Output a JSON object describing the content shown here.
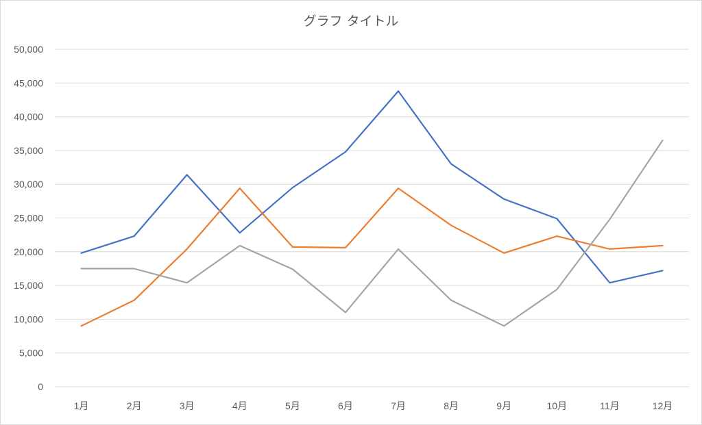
{
  "chart_data": {
    "type": "line",
    "title": "グラフ タイトル",
    "xlabel": "",
    "ylabel": "",
    "categories": [
      "1月",
      "2月",
      "3月",
      "4月",
      "5月",
      "6月",
      "7月",
      "8月",
      "9月",
      "10月",
      "11月",
      "12月"
    ],
    "ylim": [
      0,
      50000
    ],
    "yticks": [
      0,
      5000,
      10000,
      15000,
      20000,
      25000,
      30000,
      35000,
      40000,
      45000,
      50000
    ],
    "ytick_labels": [
      "0",
      "5,000",
      "10,000",
      "15,000",
      "20,000",
      "25,000",
      "30,000",
      "35,000",
      "40,000",
      "45,000",
      "50,000"
    ],
    "grid": true,
    "legend": false,
    "series": [
      {
        "color": "#4472c4",
        "values": [
          19800,
          22300,
          31400,
          22800,
          29500,
          34800,
          43800,
          33000,
          27800,
          24900,
          15400,
          17200
        ]
      },
      {
        "color": "#ed7d31",
        "values": [
          9000,
          12800,
          20400,
          29400,
          20700,
          20600,
          29400,
          23900,
          19800,
          22300,
          20400,
          20900
        ]
      },
      {
        "color": "#a5a5a5",
        "values": [
          17500,
          17500,
          15400,
          20900,
          17400,
          11000,
          20400,
          12800,
          9000,
          14400,
          24800,
          36500
        ]
      }
    ]
  }
}
